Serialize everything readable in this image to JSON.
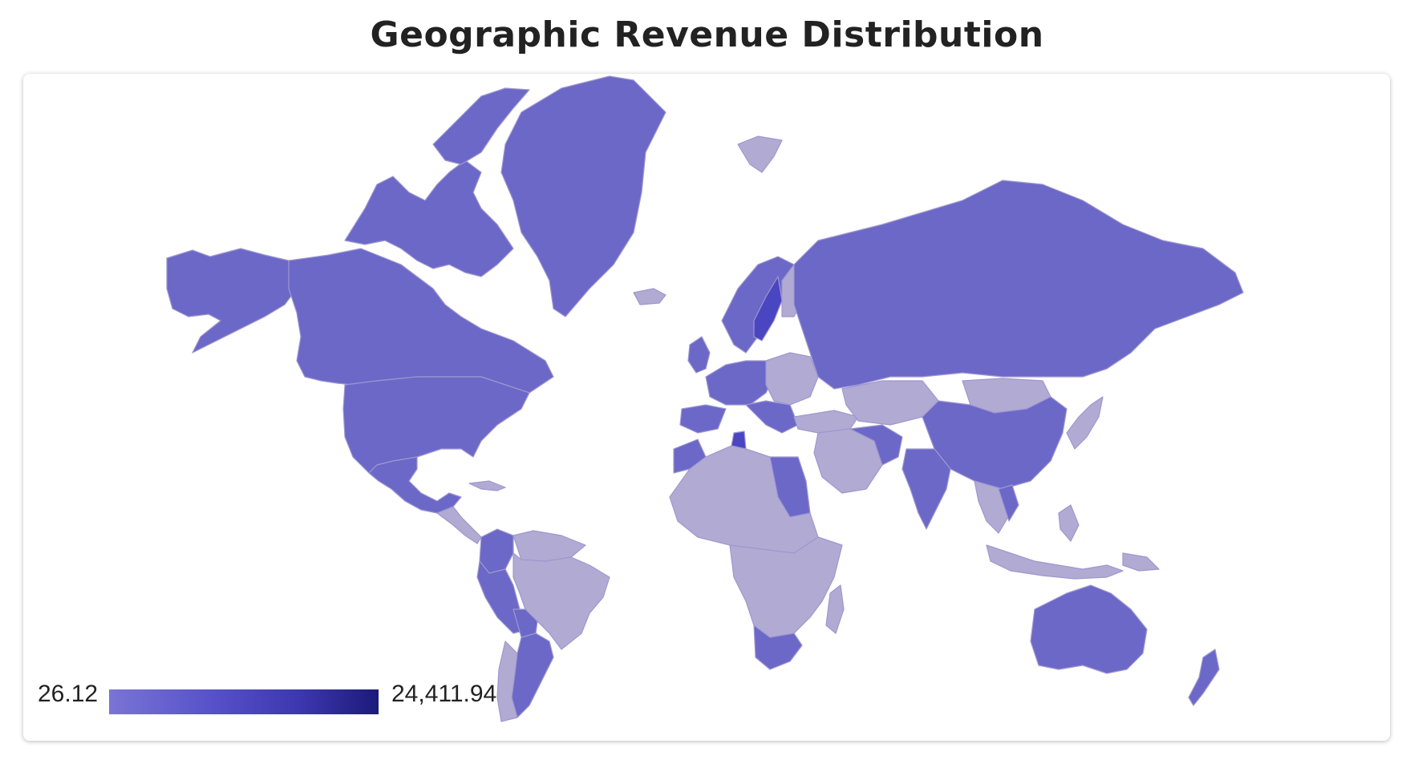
{
  "title": "Geographic Revenue Distribution",
  "legend": {
    "min_label": "26.12",
    "max_label": "24,411.94",
    "color_low": "#7a74d6",
    "color_high": "#1c1a7a"
  },
  "colors": {
    "high_revenue": "#6b68c8",
    "low_revenue": "#b1abd4",
    "top_revenue": "#4a45c0",
    "background": "#ffffff"
  }
}
